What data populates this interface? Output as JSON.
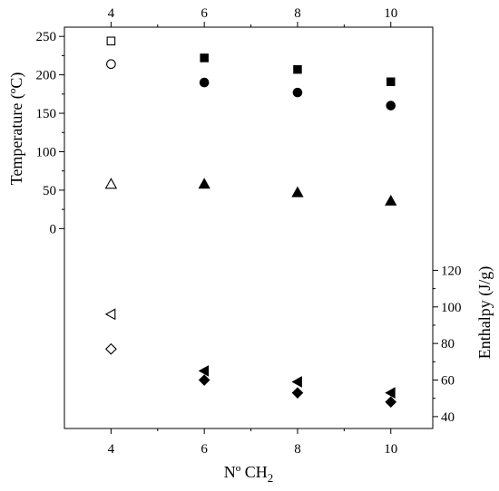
{
  "chart_data": {
    "type": "scatter",
    "x_ticks": [
      4,
      6,
      8,
      10
    ],
    "xlim": [
      3.0,
      10.9
    ],
    "xlabel_main": "Nº CH",
    "xlabel_sub": "2",
    "left_axis": {
      "ylabel": "Temperature (ºC)",
      "ylim": [
        -260,
        262
      ],
      "ticks": [
        0,
        50,
        100,
        150,
        200,
        250
      ],
      "minor_step": 25
    },
    "right_axis": {
      "ylabel": "Enthalpy (J/g)",
      "ylim": [
        33.5,
        253
      ],
      "ticks": [
        40,
        60,
        80,
        100,
        120
      ],
      "minor_step": 10
    },
    "series": [
      {
        "marker": "square",
        "axis": "left",
        "points": [
          {
            "x": 4,
            "y": 244,
            "filled": false
          },
          {
            "x": 6,
            "y": 222,
            "filled": true
          },
          {
            "x": 8,
            "y": 207,
            "filled": true
          },
          {
            "x": 10,
            "y": 191,
            "filled": true
          }
        ]
      },
      {
        "marker": "circle",
        "axis": "left",
        "points": [
          {
            "x": 4,
            "y": 214,
            "filled": false
          },
          {
            "x": 6,
            "y": 190,
            "filled": true
          },
          {
            "x": 8,
            "y": 177,
            "filled": true
          },
          {
            "x": 10,
            "y": 160,
            "filled": true
          }
        ]
      },
      {
        "marker": "triangle-up",
        "axis": "left",
        "points": [
          {
            "x": 4,
            "y": 58,
            "filled": false
          },
          {
            "x": 6,
            "y": 58,
            "filled": true
          },
          {
            "x": 8,
            "y": 47,
            "filled": true
          },
          {
            "x": 10,
            "y": 36,
            "filled": true
          }
        ]
      },
      {
        "marker": "triangle-left",
        "axis": "right",
        "points": [
          {
            "x": 4,
            "y": 96,
            "filled": false
          },
          {
            "x": 6,
            "y": 65,
            "filled": true
          },
          {
            "x": 8,
            "y": 59,
            "filled": true
          },
          {
            "x": 10,
            "y": 53,
            "filled": true
          }
        ]
      },
      {
        "marker": "diamond",
        "axis": "right",
        "points": [
          {
            "x": 4,
            "y": 77,
            "filled": false
          },
          {
            "x": 6,
            "y": 60,
            "filled": true
          },
          {
            "x": 8,
            "y": 53,
            "filled": true
          },
          {
            "x": 10,
            "y": 48,
            "filled": true
          }
        ]
      }
    ],
    "grid": false,
    "legend": "none",
    "color": "#000000"
  }
}
